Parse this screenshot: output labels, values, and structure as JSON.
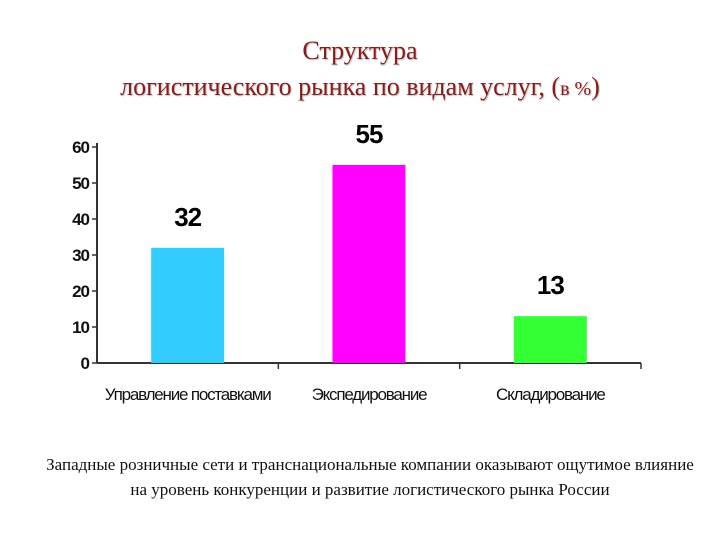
{
  "title": {
    "line1": "Структура",
    "line2_main": "логистического рынка по видам услуг, (",
    "line2_small": "в %",
    "line2_end": ")"
  },
  "footer": "Западные розничные сети и транснациональные компании  оказывают ощутимое влияние на уровень конкуренции и развитие логистического рынка России",
  "chart_data": {
    "type": "bar",
    "title": "Структура логистического рынка по видам услуг, (в %)",
    "categories": [
      "Управление поставками",
      "Экспедирование",
      "Складирование"
    ],
    "values": [
      32,
      55,
      13
    ],
    "colors": [
      "#33ccff",
      "#ff00ff",
      "#33ff33"
    ],
    "yticks": [
      0,
      10,
      20,
      30,
      40,
      50,
      60
    ],
    "ylim": [
      0,
      60
    ],
    "xlabel": "",
    "ylabel": "",
    "grid": false,
    "data_labels": true
  }
}
